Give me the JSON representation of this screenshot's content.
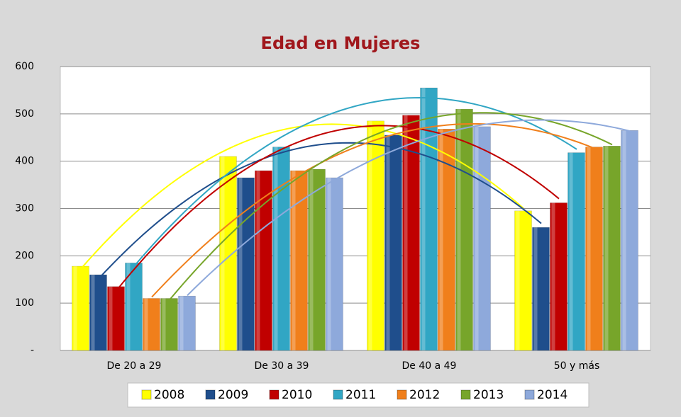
{
  "chart_data": {
    "type": "bar",
    "title": "Edad en Mujeres",
    "categories": [
      "De 20 a 29",
      "De 30 a 39",
      "De 40 a 49",
      "50 y más"
    ],
    "series": [
      {
        "name": "2008",
        "color": "#ffff00",
        "values": [
          178,
          410,
          485,
          295
        ]
      },
      {
        "name": "2009",
        "color": "#1f4e8c",
        "values": [
          160,
          365,
          455,
          260
        ]
      },
      {
        "name": "2010",
        "color": "#c00000",
        "values": [
          135,
          380,
          497,
          312
        ]
      },
      {
        "name": "2011",
        "color": "#31a6c4",
        "values": [
          185,
          430,
          555,
          418
        ]
      },
      {
        "name": "2012",
        "color": "#f07f1b",
        "values": [
          110,
          380,
          468,
          430
        ]
      },
      {
        "name": "2013",
        "color": "#77a52a",
        "values": [
          110,
          383,
          510,
          432
        ]
      },
      {
        "name": "2014",
        "color": "#8ea9db",
        "values": [
          115,
          365,
          473,
          465
        ]
      }
    ],
    "ylim": [
      0,
      600
    ],
    "yticks": [
      {
        "value": 0,
        "label": "-"
      },
      100,
      200,
      300,
      400,
      500,
      600
    ],
    "grid": true,
    "trendline": true,
    "legend": "bottom"
  }
}
